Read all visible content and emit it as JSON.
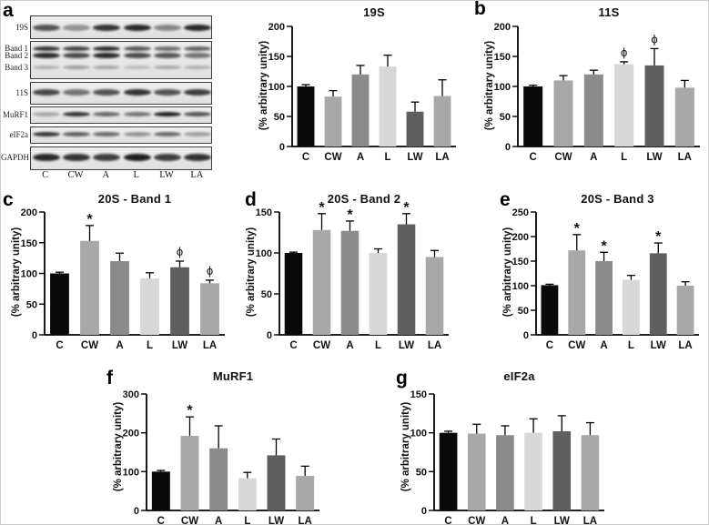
{
  "blot_panel": {
    "panel_letter": "a",
    "lane_labels": [
      "C",
      "CW",
      "A",
      "L",
      "LW",
      "LA"
    ],
    "rows": [
      {
        "labels": [
          "19S"
        ],
        "bands": [
          [
            0.7,
            0.4,
            0.85,
            0.9,
            0.45,
            0.9
          ]
        ]
      },
      {
        "labels": [
          "Band 1",
          "Band 2",
          "Band 3"
        ],
        "bands": [
          [
            0.85,
            0.8,
            0.9,
            0.7,
            0.6,
            0.65
          ],
          [
            0.9,
            0.75,
            0.9,
            0.75,
            0.7,
            0.55
          ],
          [
            0.25,
            0.35,
            0.3,
            0.2,
            0.3,
            0.25
          ]
        ]
      },
      {
        "labels": [
          "11S"
        ],
        "bands": [
          [
            0.75,
            0.55,
            0.7,
            0.85,
            0.7,
            0.8
          ]
        ]
      },
      {
        "labels": [
          "MuRF1"
        ],
        "bands": [
          [
            0.3,
            0.85,
            0.6,
            0.55,
            0.95,
            0.7
          ]
        ]
      },
      {
        "labels": [
          "eIF2a"
        ],
        "bands": [
          [
            0.85,
            0.65,
            0.6,
            0.4,
            0.6,
            0.35
          ]
        ]
      },
      {
        "labels": [
          "GAPDH"
        ],
        "bands": [
          [
            0.9,
            0.85,
            0.8,
            0.95,
            0.8,
            0.85
          ]
        ]
      }
    ]
  },
  "bar_colors": {
    "C": "#0a0a0a",
    "CW": "#a8a8a8",
    "A": "#8b8b8b",
    "L": "#d8d8d8",
    "LW": "#5f5f5f",
    "LA": "#a8a8a8"
  },
  "chart_data": [
    {
      "panel_letter": "",
      "type": "bar",
      "title": "19S",
      "ylabel": "(% arbitrary unity)",
      "categories": [
        "C",
        "CW",
        "A",
        "L",
        "LW",
        "LA"
      ],
      "values": [
        100,
        83,
        120,
        133,
        58,
        84
      ],
      "errors": [
        3,
        10,
        15,
        19,
        16,
        27
      ],
      "annotations": [
        "",
        "",
        "",
        "",
        "",
        ""
      ],
      "ylim": [
        0,
        200
      ],
      "yticks": [
        0,
        50,
        100,
        150,
        200
      ]
    },
    {
      "panel_letter": "b",
      "type": "bar",
      "title": "11S",
      "ylabel": "(% arbitrary unity)",
      "categories": [
        "C",
        "CW",
        "A",
        "L",
        "LW",
        "LA"
      ],
      "values": [
        100,
        110,
        120,
        137,
        135,
        98
      ],
      "errors": [
        2,
        8,
        7,
        4,
        28,
        12
      ],
      "annotations": [
        "",
        "",
        "",
        "ϕ",
        "ϕ",
        ""
      ],
      "ylim": [
        0,
        200
      ],
      "yticks": [
        0,
        50,
        100,
        150,
        200
      ]
    },
    {
      "panel_letter": "c",
      "type": "bar",
      "title": "20S - Band 1",
      "ylabel": "(% arbitrary unity)",
      "categories": [
        "C",
        "CW",
        "A",
        "L",
        "LW",
        "LA"
      ],
      "values": [
        100,
        153,
        120,
        92,
        110,
        84
      ],
      "errors": [
        2,
        25,
        13,
        9,
        10,
        5
      ],
      "annotations": [
        "",
        "*",
        "",
        "",
        "ϕ",
        "ϕ"
      ],
      "ylim": [
        0,
        200
      ],
      "yticks": [
        0,
        50,
        100,
        150,
        200
      ]
    },
    {
      "panel_letter": "d",
      "type": "bar",
      "title": "20S - Band 2",
      "ylabel": "(% arbitrary unity)",
      "categories": [
        "C",
        "CW",
        "A",
        "L",
        "LW",
        "LA"
      ],
      "values": [
        100,
        128,
        127,
        100,
        135,
        95
      ],
      "errors": [
        1,
        20,
        12,
        5,
        13,
        8
      ],
      "annotations": [
        "",
        "*",
        "*",
        "",
        "*",
        ""
      ],
      "ylim": [
        0,
        150
      ],
      "yticks": [
        0,
        50,
        100,
        150
      ]
    },
    {
      "panel_letter": "e",
      "type": "bar",
      "title": "20S - Band 3",
      "ylabel": "(% arbitrary unity)",
      "categories": [
        "C",
        "CW",
        "A",
        "L",
        "LW",
        "LA"
      ],
      "values": [
        101,
        172,
        150,
        112,
        166,
        100
      ],
      "errors": [
        2,
        32,
        18,
        9,
        21,
        8
      ],
      "annotations": [
        "",
        "*",
        "*",
        "",
        "*",
        ""
      ],
      "ylim": [
        0,
        250
      ],
      "yticks": [
        0,
        50,
        100,
        150,
        200,
        250
      ]
    },
    {
      "panel_letter": "f",
      "type": "bar",
      "title": "MuRF1",
      "ylabel": "(% arbitrary unity)",
      "categories": [
        "C",
        "CW",
        "A",
        "L",
        "LW",
        "LA"
      ],
      "values": [
        100,
        192,
        160,
        83,
        142,
        89
      ],
      "errors": [
        3,
        49,
        58,
        15,
        42,
        25
      ],
      "annotations": [
        "",
        "*",
        "",
        "",
        "",
        ""
      ],
      "ylim": [
        0,
        300
      ],
      "yticks": [
        0,
        100,
        200,
        300
      ]
    },
    {
      "panel_letter": "g",
      "type": "bar",
      "title": "eIF2a",
      "ylabel": "(% arbitrary unity)",
      "categories": [
        "C",
        "CW",
        "A",
        "L",
        "LW",
        "LA"
      ],
      "values": [
        100,
        99,
        97,
        100,
        102,
        97
      ],
      "errors": [
        2,
        12,
        12,
        18,
        20,
        16
      ],
      "annotations": [
        "",
        "",
        "",
        "",
        "",
        ""
      ],
      "ylim": [
        0,
        150
      ],
      "yticks": [
        0,
        50,
        100,
        150
      ]
    }
  ]
}
